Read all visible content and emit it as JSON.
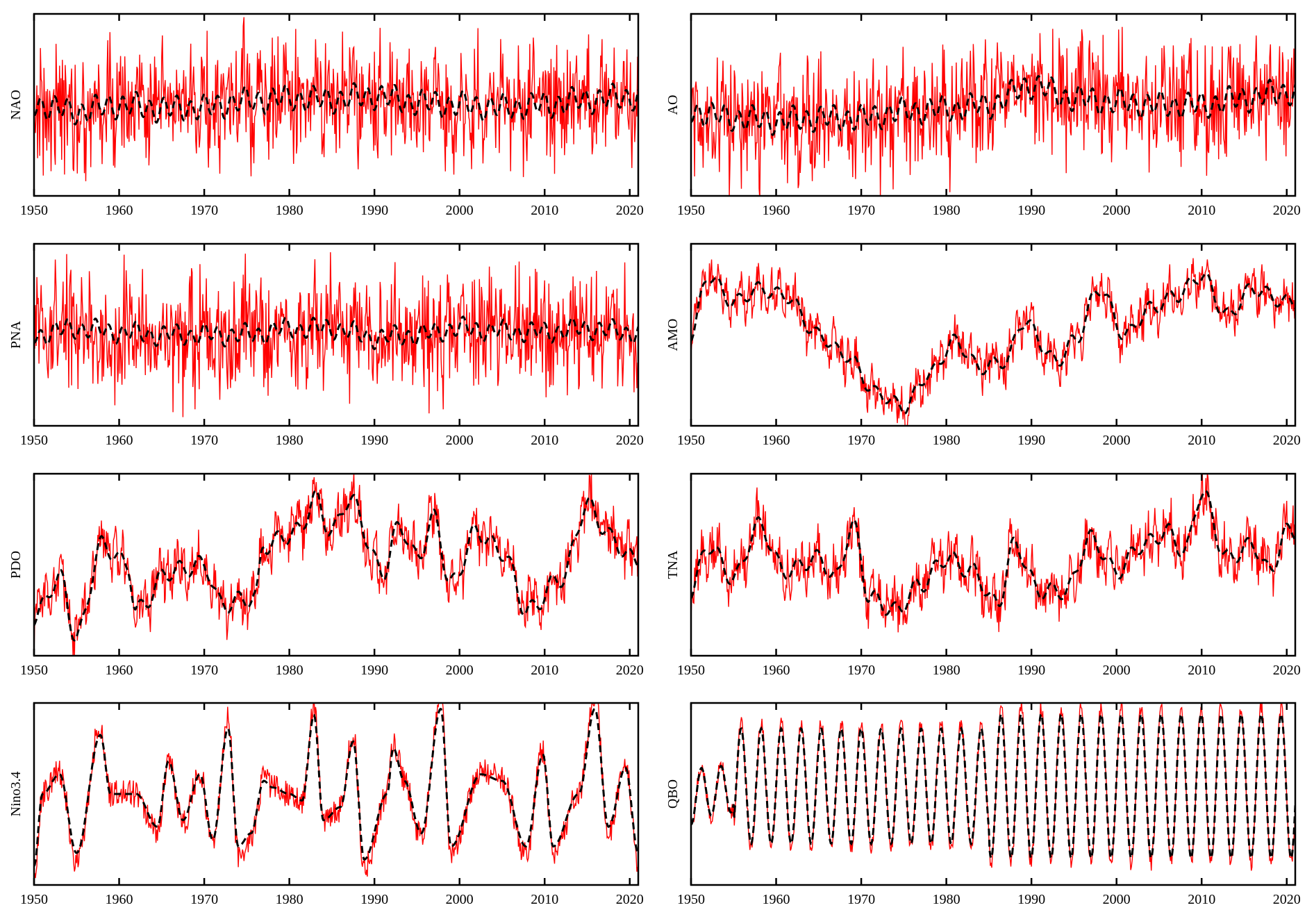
{
  "colors": {
    "raw": "#ff0000",
    "smoothed": "#000000",
    "axes": "#000000",
    "background": "#ffffff"
  },
  "chart_data": [
    {
      "type": "line",
      "ylabel": "NAO",
      "xlim": [
        1950,
        2021
      ],
      "xticks": [
        1950,
        1960,
        1970,
        1980,
        1990,
        2000,
        2010,
        2020
      ],
      "series": [
        {
          "style": "red-solid",
          "pattern": "noisy",
          "amplitude": 0.55,
          "smooth_amplitude": 0.08,
          "anchors": [
            [
              1950,
              0.0
            ],
            [
              1955,
              -0.05
            ],
            [
              1960,
              0.0
            ],
            [
              1965,
              -0.03
            ],
            [
              1970,
              -0.02
            ],
            [
              1975,
              0.03
            ],
            [
              1980,
              0.05
            ],
            [
              1985,
              0.04
            ],
            [
              1990,
              0.07
            ],
            [
              1995,
              0.02
            ],
            [
              2000,
              0.0
            ],
            [
              2005,
              -0.02
            ],
            [
              2010,
              0.0
            ],
            [
              2015,
              0.04
            ],
            [
              2020,
              0.06
            ]
          ]
        }
      ]
    },
    {
      "type": "line",
      "ylabel": "AO",
      "xlim": [
        1950,
        2021
      ],
      "xticks": [
        1950,
        1960,
        1970,
        1980,
        1990,
        2000,
        2010,
        2020
      ],
      "series": [
        {
          "style": "red-solid",
          "pattern": "noisy",
          "amplitude": 0.55,
          "smooth_amplitude": 0.08,
          "anchors": [
            [
              1950,
              -0.05
            ],
            [
              1955,
              -0.1
            ],
            [
              1960,
              -0.12
            ],
            [
              1965,
              -0.1
            ],
            [
              1970,
              -0.1
            ],
            [
              1975,
              -0.05
            ],
            [
              1980,
              -0.03
            ],
            [
              1985,
              0.0
            ],
            [
              1990,
              0.15
            ],
            [
              1995,
              0.05
            ],
            [
              2000,
              0.02
            ],
            [
              2005,
              0.0
            ],
            [
              2010,
              0.0
            ],
            [
              2015,
              0.05
            ],
            [
              2020,
              0.1
            ]
          ]
        }
      ]
    },
    {
      "type": "line",
      "ylabel": "PNA",
      "xlim": [
        1950,
        2021
      ],
      "xticks": [
        1950,
        1960,
        1970,
        1980,
        1990,
        2000,
        2010,
        2020
      ],
      "series": [
        {
          "style": "red-solid",
          "pattern": "noisy",
          "amplitude": 0.55,
          "smooth_amplitude": 0.06,
          "anchors": [
            [
              1950,
              0.0
            ],
            [
              1955,
              0.05
            ],
            [
              1960,
              0.02
            ],
            [
              1965,
              0.0
            ],
            [
              1970,
              0.0
            ],
            [
              1975,
              0.0
            ],
            [
              1980,
              0.05
            ],
            [
              1985,
              0.05
            ],
            [
              1990,
              -0.02
            ],
            [
              1995,
              0.0
            ],
            [
              2000,
              0.05
            ],
            [
              2005,
              0.03
            ],
            [
              2010,
              0.02
            ],
            [
              2015,
              0.05
            ],
            [
              2020,
              0.02
            ]
          ]
        }
      ]
    },
    {
      "type": "line",
      "ylabel": "AMO",
      "xlim": [
        1950,
        2021
      ],
      "xticks": [
        1950,
        1960,
        1970,
        1980,
        1990,
        2000,
        2010,
        2020
      ],
      "series": [
        {
          "style": "red-solid",
          "pattern": "wavy",
          "amplitude": 0.12,
          "smooth_amplitude": 0.15,
          "anchors": [
            [
              1950,
              0.0
            ],
            [
              1952,
              0.45
            ],
            [
              1955,
              0.25
            ],
            [
              1958,
              0.35
            ],
            [
              1961,
              0.3
            ],
            [
              1965,
              0.0
            ],
            [
              1968,
              -0.15
            ],
            [
              1972,
              -0.45
            ],
            [
              1975,
              -0.55
            ],
            [
              1978,
              -0.3
            ],
            [
              1981,
              -0.05
            ],
            [
              1984,
              -0.25
            ],
            [
              1987,
              -0.2
            ],
            [
              1989,
              0.1
            ],
            [
              1993,
              -0.2
            ],
            [
              1995,
              -0.05
            ],
            [
              1998,
              0.35
            ],
            [
              2001,
              0.0
            ],
            [
              2004,
              0.2
            ],
            [
              2007,
              0.3
            ],
            [
              2010,
              0.45
            ],
            [
              2013,
              0.15
            ],
            [
              2016,
              0.35
            ],
            [
              2020,
              0.25
            ]
          ]
        }
      ]
    },
    {
      "type": "line",
      "ylabel": "PDO",
      "xlim": [
        1950,
        2021
      ],
      "xticks": [
        1950,
        1960,
        1970,
        1980,
        1990,
        2000,
        2010,
        2020
      ],
      "series": [
        {
          "style": "red-solid",
          "pattern": "wavy",
          "amplitude": 0.15,
          "smooth_amplitude": 0.2,
          "anchors": [
            [
              1950,
              -0.4
            ],
            [
              1953,
              -0.1
            ],
            [
              1955,
              -0.55
            ],
            [
              1958,
              0.15
            ],
            [
              1961,
              0.0
            ],
            [
              1962,
              -0.35
            ],
            [
              1966,
              -0.05
            ],
            [
              1970,
              0.0
            ],
            [
              1972,
              -0.3
            ],
            [
              1976,
              -0.25
            ],
            [
              1977,
              0.15
            ],
            [
              1981,
              0.25
            ],
            [
              1983,
              0.5
            ],
            [
              1985,
              0.25
            ],
            [
              1987,
              0.5
            ],
            [
              1991,
              -0.05
            ],
            [
              1993,
              0.3
            ],
            [
              1995,
              0.05
            ],
            [
              1997,
              0.35
            ],
            [
              1999,
              -0.15
            ],
            [
              2002,
              0.25
            ],
            [
              2005,
              0.1
            ],
            [
              2008,
              -0.35
            ],
            [
              2012,
              -0.1
            ],
            [
              2015,
              0.45
            ],
            [
              2018,
              0.2
            ],
            [
              2020,
              0.05
            ]
          ]
        }
      ]
    },
    {
      "type": "line",
      "ylabel": "TNA",
      "xlim": [
        1950,
        2021
      ],
      "xticks": [
        1950,
        1960,
        1970,
        1980,
        1990,
        2000,
        2010,
        2020
      ],
      "series": [
        {
          "style": "red-solid",
          "pattern": "wavy",
          "amplitude": 0.15,
          "smooth_amplitude": 0.18,
          "anchors": [
            [
              1950,
              -0.2
            ],
            [
              1952,
              0.15
            ],
            [
              1955,
              -0.1
            ],
            [
              1958,
              0.3
            ],
            [
              1961,
              -0.05
            ],
            [
              1965,
              0.05
            ],
            [
              1967,
              -0.1
            ],
            [
              1969,
              0.3
            ],
            [
              1971,
              -0.25
            ],
            [
              1974,
              -0.35
            ],
            [
              1977,
              -0.15
            ],
            [
              1980,
              0.05
            ],
            [
              1983,
              -0.05
            ],
            [
              1986,
              -0.3
            ],
            [
              1988,
              0.15
            ],
            [
              1991,
              -0.2
            ],
            [
              1994,
              -0.2
            ],
            [
              1997,
              0.2
            ],
            [
              2000,
              -0.05
            ],
            [
              2003,
              0.15
            ],
            [
              2006,
              0.25
            ],
            [
              2008,
              0.1
            ],
            [
              2010,
              0.55
            ],
            [
              2013,
              0.05
            ],
            [
              2016,
              0.15
            ],
            [
              2018,
              -0.05
            ],
            [
              2020,
              0.25
            ]
          ]
        }
      ]
    },
    {
      "type": "line",
      "ylabel": "Nino3.4",
      "xlim": [
        1950,
        2021
      ],
      "xticks": [
        1950,
        1960,
        1970,
        1980,
        1990,
        2000,
        2010,
        2020
      ],
      "series": [
        {
          "style": "red-solid",
          "pattern": "enso",
          "amplitude": 0.15,
          "smooth_amplitude": 0.0,
          "anchors": [
            [
              1950,
              -0.55
            ],
            [
              1951,
              0.0
            ],
            [
              1953,
              0.15
            ],
            [
              1955,
              -0.45
            ],
            [
              1957.8,
              0.45
            ],
            [
              1959,
              0.0
            ],
            [
              1962,
              0.0
            ],
            [
              1964.5,
              -0.25
            ],
            [
              1965.8,
              0.25
            ],
            [
              1967.5,
              -0.2
            ],
            [
              1969.5,
              0.15
            ],
            [
              1971,
              -0.35
            ],
            [
              1972.8,
              0.5
            ],
            [
              1974,
              -0.4
            ],
            [
              1975.5,
              -0.3
            ],
            [
              1977,
              0.1
            ],
            [
              1978,
              0.05
            ],
            [
              1980,
              0.0
            ],
            [
              1981.5,
              -0.05
            ],
            [
              1982.9,
              0.6
            ],
            [
              1984,
              -0.2
            ],
            [
              1986,
              -0.1
            ],
            [
              1987.5,
              0.4
            ],
            [
              1988.8,
              -0.5
            ],
            [
              1991.5,
              0.0
            ],
            [
              1992.2,
              0.35
            ],
            [
              1993.5,
              0.1
            ],
            [
              1995.5,
              -0.3
            ],
            [
              1997.8,
              0.65
            ],
            [
              1999,
              -0.4
            ],
            [
              2002.5,
              0.15
            ],
            [
              2005,
              0.1
            ],
            [
              2007.8,
              -0.4
            ],
            [
              2009.8,
              0.3
            ],
            [
              2011,
              -0.4
            ],
            [
              2014,
              0.0
            ],
            [
              2015.9,
              0.65
            ],
            [
              2017.5,
              -0.25
            ],
            [
              2019.5,
              0.2
            ],
            [
              2021,
              -0.45
            ]
          ]
        }
      ]
    },
    {
      "type": "line",
      "ylabel": "QBO",
      "xlim": [
        1950,
        2021
      ],
      "xticks": [
        1950,
        1960,
        1970,
        1980,
        1990,
        2000,
        2010,
        2020
      ],
      "series": [
        {
          "style": "red-solid",
          "pattern": "qbo",
          "period_years": 2.35,
          "amplitude": 0.55,
          "anchors": [
            [
              1950,
              -0.2
            ],
            [
              1952,
              0.15
            ],
            [
              1954,
              0.1
            ],
            [
              1955,
              0.3
            ],
            [
              2020,
              0.3
            ]
          ]
        }
      ]
    }
  ]
}
